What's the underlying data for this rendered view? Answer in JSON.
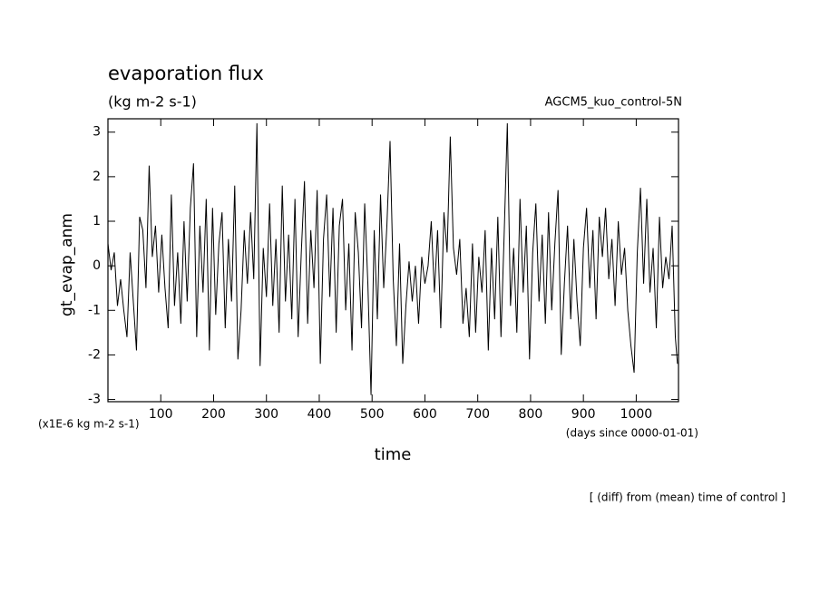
{
  "chart_data": {
    "type": "line",
    "title": "evaporation flux",
    "subtitle": "(kg m-2 s-1)",
    "annotation": "AGCM5_kuo_control-5N",
    "ylabel": "gt_evap_anm",
    "yunit": "(x1E-6 kg m-2 s-1)",
    "xlabel": "time",
    "xunit": "(days since 0000-01-01)",
    "note": "[ (diff) from (mean) time of control ]",
    "xlim": [
      0,
      1080
    ],
    "ylim": [
      -3.05,
      3.3
    ],
    "xticks": [
      100,
      200,
      300,
      400,
      500,
      600,
      700,
      800,
      900,
      1000
    ],
    "yticks": [
      -3,
      -2,
      -1,
      0,
      1,
      2,
      3
    ],
    "color": "#000000",
    "x": [
      0,
      6,
      12,
      18,
      24,
      30,
      36,
      42,
      48,
      54,
      60,
      66,
      72,
      78,
      84,
      90,
      96,
      102,
      108,
      114,
      120,
      126,
      132,
      138,
      144,
      150,
      156,
      162,
      168,
      174,
      180,
      186,
      192,
      198,
      204,
      210,
      216,
      222,
      228,
      234,
      240,
      246,
      252,
      258,
      264,
      270,
      276,
      282,
      288,
      294,
      300,
      306,
      312,
      318,
      324,
      330,
      336,
      342,
      348,
      354,
      360,
      366,
      372,
      378,
      384,
      390,
      396,
      402,
      408,
      414,
      420,
      426,
      432,
      438,
      444,
      450,
      456,
      462,
      468,
      474,
      480,
      486,
      492,
      498,
      504,
      510,
      516,
      522,
      528,
      534,
      540,
      546,
      552,
      558,
      564,
      570,
      576,
      582,
      588,
      594,
      600,
      606,
      612,
      618,
      624,
      630,
      636,
      642,
      648,
      654,
      660,
      666,
      672,
      678,
      684,
      690,
      696,
      702,
      708,
      714,
      720,
      726,
      732,
      738,
      744,
      750,
      756,
      762,
      768,
      774,
      780,
      786,
      792,
      798,
      804,
      810,
      816,
      822,
      828,
      834,
      840,
      846,
      852,
      858,
      864,
      870,
      876,
      882,
      888,
      894,
      900,
      906,
      912,
      918,
      924,
      930,
      936,
      942,
      948,
      954,
      960,
      966,
      972,
      978,
      984,
      990,
      996,
      1002,
      1008,
      1014,
      1020,
      1026,
      1032,
      1038,
      1044,
      1050,
      1056,
      1062,
      1068,
      1074,
      1078
    ],
    "values": [
      0.5,
      -0.1,
      0.3,
      -0.9,
      -0.3,
      -1.0,
      -1.6,
      0.3,
      -0.8,
      -1.9,
      1.1,
      0.8,
      -0.5,
      2.25,
      0.2,
      0.9,
      -0.6,
      0.7,
      -0.5,
      -1.4,
      1.6,
      -0.9,
      0.3,
      -1.3,
      1.0,
      -0.8,
      1.3,
      2.3,
      -1.6,
      0.9,
      -0.6,
      1.5,
      -1.9,
      1.3,
      -1.1,
      0.5,
      1.2,
      -1.4,
      0.6,
      -0.8,
      1.8,
      -2.1,
      -1.0,
      0.8,
      -0.4,
      1.2,
      -0.3,
      3.2,
      -2.25,
      0.4,
      -0.7,
      1.4,
      -0.9,
      0.6,
      -1.5,
      1.8,
      -0.8,
      0.7,
      -1.2,
      1.5,
      -1.6,
      0.3,
      1.9,
      -1.3,
      0.8,
      -0.5,
      1.7,
      -2.2,
      0.6,
      1.6,
      -0.7,
      1.3,
      -1.5,
      0.9,
      1.5,
      -1.0,
      0.5,
      -1.9,
      1.2,
      0.3,
      -1.4,
      1.4,
      -0.4,
      -2.9,
      0.8,
      -1.2,
      1.6,
      -0.5,
      0.9,
      2.8,
      -0.3,
      -1.8,
      0.5,
      -2.2,
      -0.9,
      0.1,
      -0.8,
      0.0,
      -1.3,
      0.2,
      -0.4,
      0.0,
      1.0,
      -0.6,
      0.8,
      -1.4,
      1.2,
      0.3,
      2.9,
      0.4,
      -0.2,
      0.6,
      -1.3,
      -0.5,
      -1.6,
      0.5,
      -1.5,
      0.2,
      -0.6,
      0.8,
      -1.9,
      0.4,
      -1.2,
      1.1,
      -1.6,
      0.7,
      3.2,
      -0.9,
      0.4,
      -1.5,
      1.5,
      -0.6,
      0.9,
      -2.1,
      0.3,
      1.4,
      -0.8,
      0.7,
      -1.3,
      1.2,
      -1.0,
      0.5,
      1.7,
      -2.0,
      -0.4,
      0.9,
      -1.2,
      0.6,
      -0.8,
      -1.8,
      0.4,
      1.3,
      -0.5,
      0.8,
      -1.2,
      1.1,
      0.2,
      1.3,
      -0.3,
      0.6,
      -0.9,
      1.0,
      -0.2,
      0.4,
      -1.0,
      -1.8,
      -2.4,
      0.3,
      1.75,
      -0.4,
      1.5,
      -0.6,
      0.4,
      -1.4,
      1.1,
      -0.5,
      0.2,
      -0.3,
      0.9,
      -1.6,
      -2.2
    ]
  }
}
